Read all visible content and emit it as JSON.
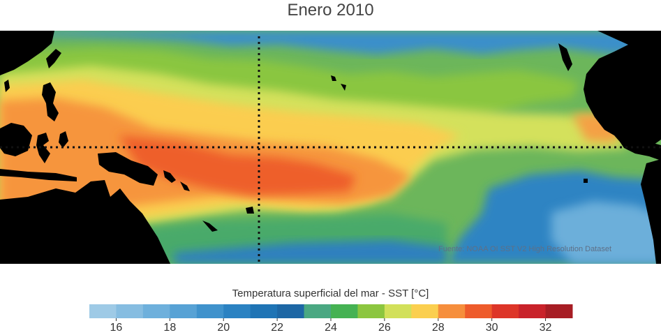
{
  "title": "Enero 2010",
  "source_note": "Fuente: NOAA OI SST V2 High Resolution Dataset",
  "colorbar": {
    "label": "Temperatura superficial del mar - SST  [°C]",
    "unit": "°C",
    "min": 15,
    "max": 33,
    "colors": [
      "#9ecae6",
      "#86bde1",
      "#6eb0dc",
      "#57a2d5",
      "#3f92cc",
      "#2b82c2",
      "#1f74b5",
      "#1d67a5",
      "#4aa882",
      "#45b253",
      "#8cc63f",
      "#d2e05a",
      "#fbcf4f",
      "#f68e3c",
      "#ee5b2b",
      "#dd3528",
      "#c9222a",
      "#a71d24"
    ],
    "ticks": [
      16,
      18,
      20,
      22,
      24,
      26,
      28,
      30,
      32
    ]
  },
  "map": {
    "reference_lines": [
      "equator",
      "dateline"
    ],
    "colors": {
      "land": "#000000",
      "background": "#ffffff",
      "reference_line": "#111111"
    }
  }
}
